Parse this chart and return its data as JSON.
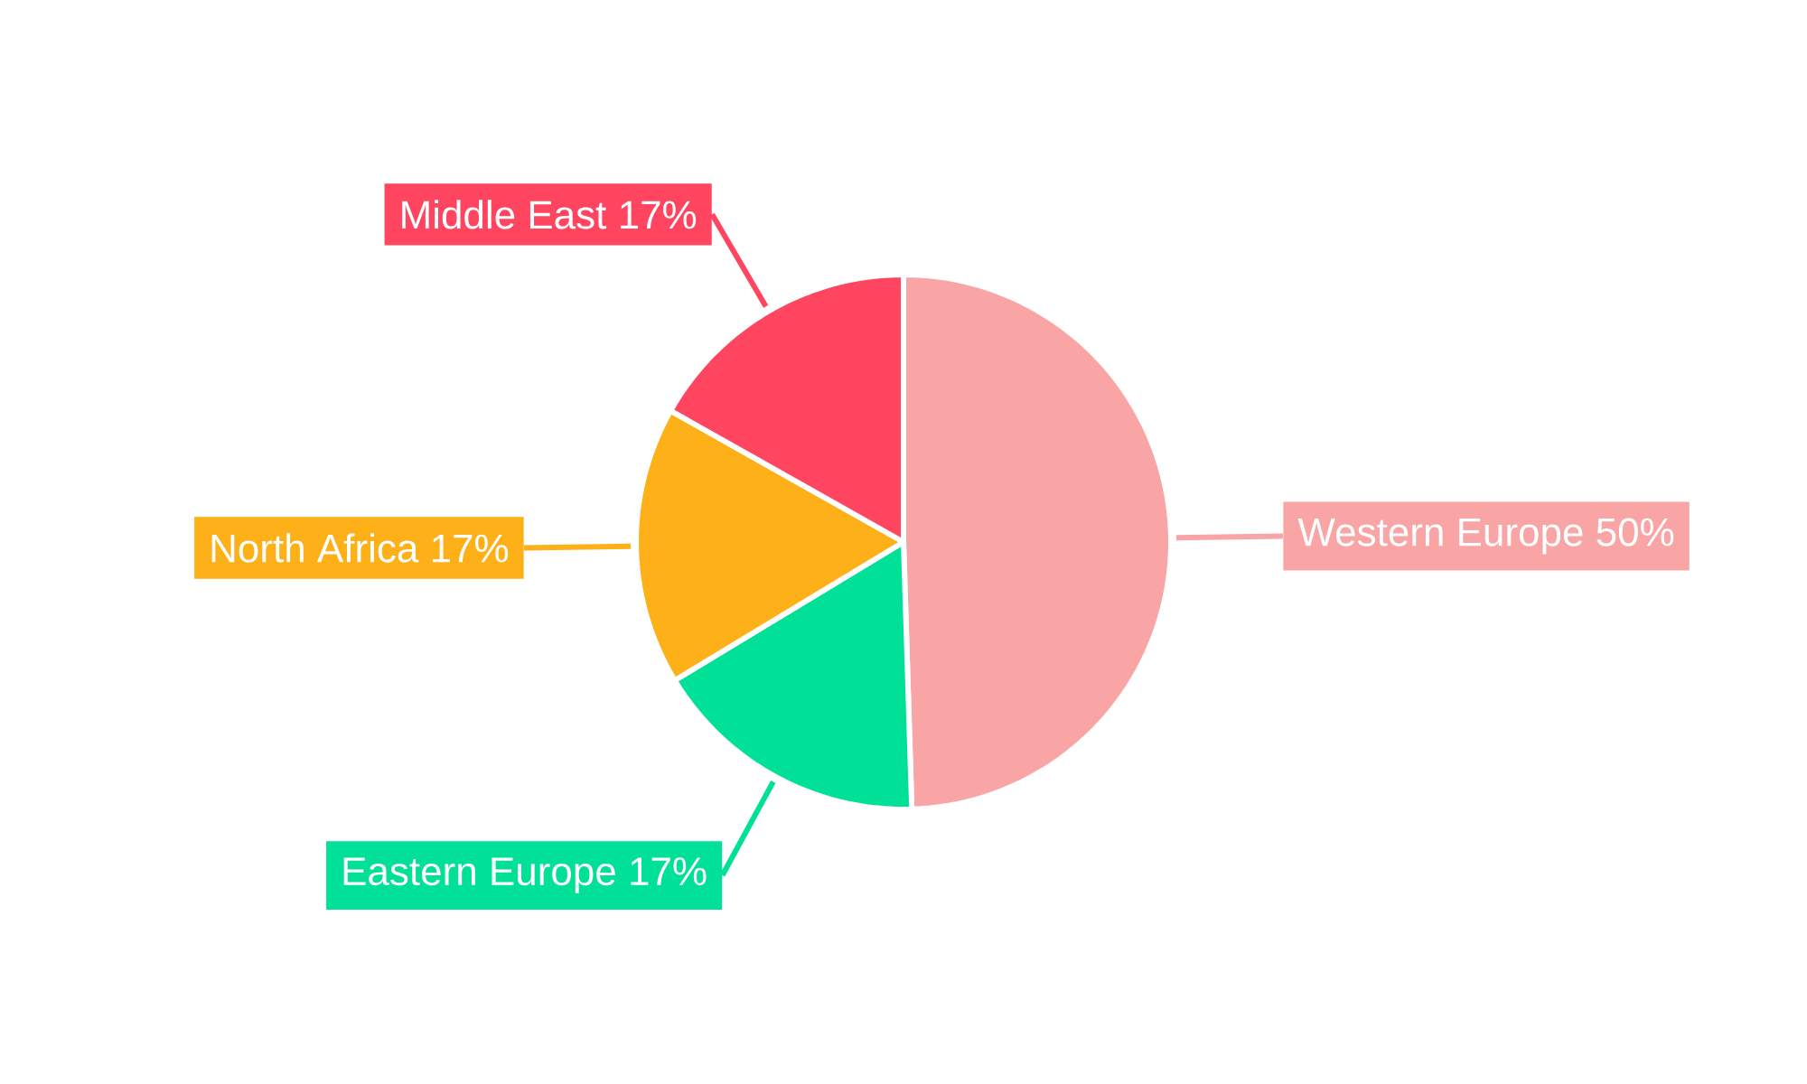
{
  "chart_data": {
    "type": "pie",
    "categories": [
      "Western Europe",
      "Eastern Europe",
      "North Africa",
      "Middle East"
    ],
    "values": [
      50,
      17,
      17,
      17
    ],
    "value_labels": [
      "50%",
      "17%",
      "17%",
      "17%"
    ],
    "colors": [
      "#f9a5a5",
      "#00e096",
      "#feb019",
      "#ff4560"
    ]
  }
}
